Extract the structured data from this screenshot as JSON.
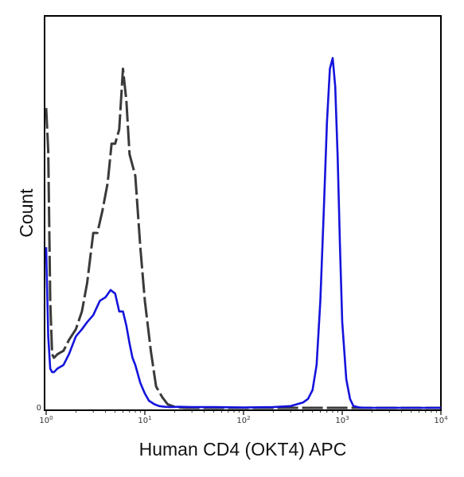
{
  "chart_data": {
    "type": "line",
    "title": "",
    "xlabel": "Human CD4 (OKT4) APC",
    "ylabel": "Count",
    "x_scale": "log",
    "xlim": [
      1,
      10000
    ],
    "ylim": [
      0,
      100
    ],
    "grid": false,
    "legend": "none",
    "x_ticks": [
      {
        "value": 1,
        "base": "10",
        "exp": "0"
      },
      {
        "value": 10,
        "base": "10",
        "exp": "1"
      },
      {
        "value": 100,
        "base": "10",
        "exp": "2"
      },
      {
        "value": 1000,
        "base": "10",
        "exp": "3"
      },
      {
        "value": 10000,
        "base": "10",
        "exp": "4"
      }
    ],
    "y_ticks": [
      {
        "value": 0,
        "label": "0"
      }
    ],
    "series": [
      {
        "color": "#3a3a3a",
        "dash": "dashed",
        "x": [
          1.0,
          1.05,
          1.1,
          1.15,
          1.2,
          1.3,
          1.5,
          1.7,
          2.0,
          2.3,
          2.6,
          3.0,
          3.3,
          3.7,
          4.2,
          4.6,
          5.0,
          5.5,
          6.0,
          6.5,
          7.0,
          8.0,
          9.0,
          10.0,
          11.5,
          13.0,
          15.0,
          17.0,
          20.0,
          23.0,
          26.0,
          30.0,
          40.0,
          100.0,
          1000.0,
          10000.0
        ],
        "y": [
          84,
          72,
          30,
          15,
          14,
          15,
          16,
          19,
          22,
          27,
          35,
          49,
          49,
          55,
          63,
          74,
          74,
          78,
          95,
          86,
          71,
          65,
          45,
          30,
          16,
          6,
          3,
          1,
          0.3,
          0.1,
          0,
          0,
          0,
          0,
          0,
          0
        ]
      },
      {
        "color": "#1414dc",
        "dash": "solid",
        "x": [
          1.0,
          1.05,
          1.1,
          1.15,
          1.2,
          1.3,
          1.5,
          1.7,
          2.0,
          2.3,
          2.6,
          3.0,
          3.5,
          4.0,
          4.5,
          5.0,
          5.5,
          6.0,
          6.5,
          7.0,
          7.5,
          8.0,
          9.0,
          10.0,
          11.0,
          12.5,
          14.0,
          16.0,
          18.0,
          22.0,
          30.0,
          50.0,
          100.0,
          200.0,
          300.0,
          400.0,
          450.0,
          500.0,
          550.0,
          600.0,
          650.0,
          700.0,
          750.0,
          800.0,
          850.0,
          900.0,
          950.0,
          1000.0,
          1100.0,
          1200.0,
          1300.0,
          1500.0,
          1800.0,
          2500.0,
          10000.0
        ],
        "y": [
          45,
          20,
          11,
          10,
          10,
          11,
          12,
          15,
          20,
          22,
          24,
          26,
          30,
          31,
          33,
          32,
          27,
          27,
          23,
          18,
          14,
          12,
          7,
          4,
          2,
          1,
          0.5,
          0.3,
          0.2,
          0.3,
          0.2,
          0.2,
          0.1,
          0.2,
          0.5,
          1.5,
          2.5,
          5,
          12,
          30,
          55,
          80,
          95,
          98,
          90,
          70,
          45,
          24,
          8,
          2.5,
          0.5,
          0.1,
          0,
          0,
          0
        ]
      }
    ]
  }
}
